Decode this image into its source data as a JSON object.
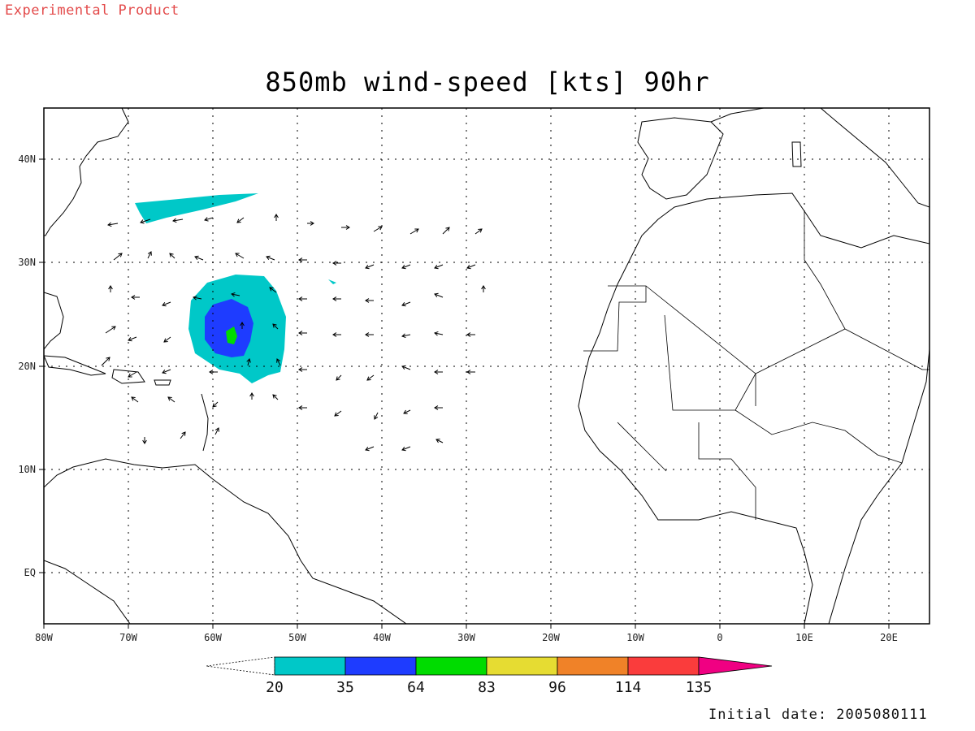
{
  "header": {
    "badge": "Experimental Product",
    "title": "850mb wind-speed [kts] 90hr"
  },
  "footer": {
    "initial_date": "Initial date: 2005080111"
  },
  "map": {
    "projection": "latlon",
    "lon_range": [
      -80,
      25
    ],
    "lat_range": [
      -6,
      45
    ],
    "lon_ticks": [
      "80W",
      "70W",
      "60W",
      "50W",
      "40W",
      "30W",
      "20W",
      "10W",
      "0",
      "10E",
      "20E"
    ],
    "lat_ticks": [
      "40N",
      "30N",
      "20N",
      "10N",
      "EQ"
    ],
    "grid": true
  },
  "colorbar": {
    "labels": [
      "20",
      "35",
      "64",
      "83",
      "96",
      "114",
      "135"
    ],
    "colors": [
      "#00c8c8",
      "#1e3cff",
      "#00dc00",
      "#e6dc32",
      "#f08228",
      "#fa3c3c",
      "#f00082"
    ]
  }
}
